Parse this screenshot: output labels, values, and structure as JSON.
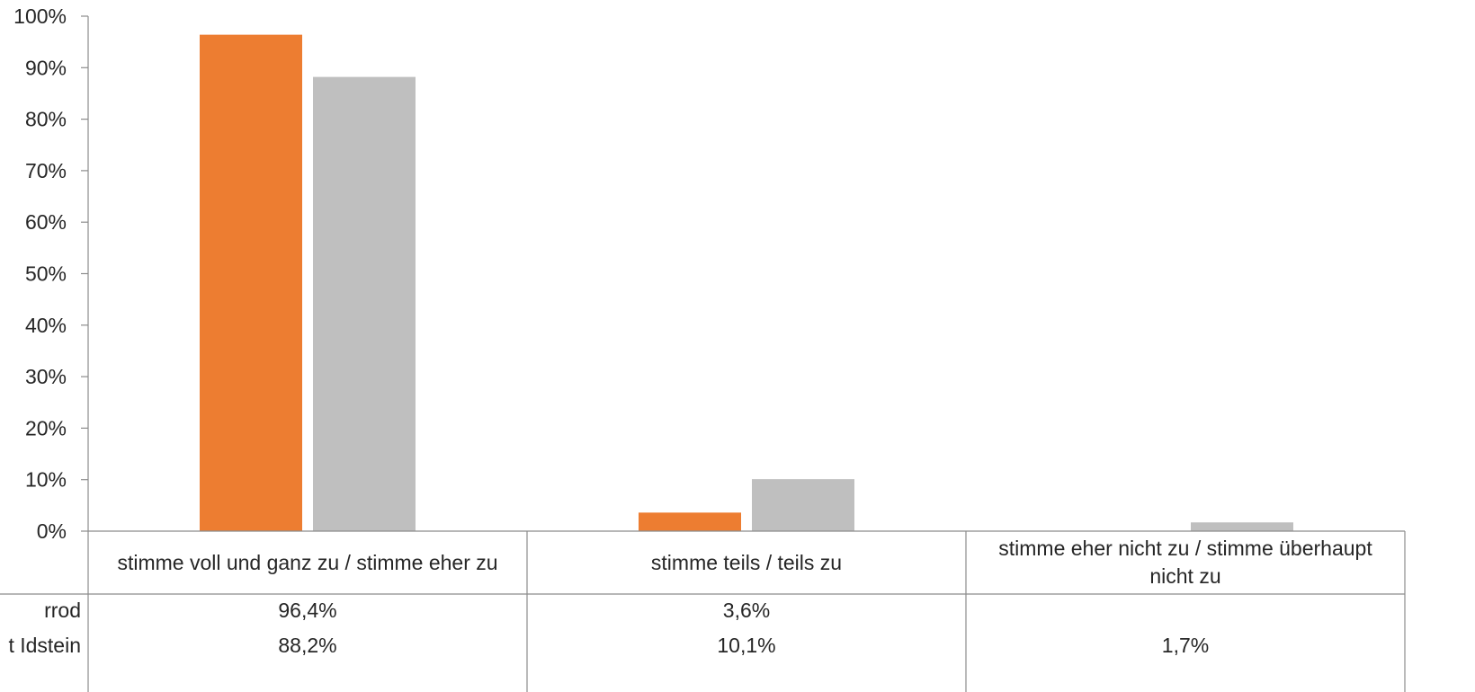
{
  "chart_data": {
    "type": "bar",
    "title": "",
    "xlabel": "",
    "ylabel": "",
    "ylim": [
      0,
      100
    ],
    "y_ticks": [
      "0%",
      "10%",
      "20%",
      "30%",
      "40%",
      "50%",
      "60%",
      "70%",
      "80%",
      "90%",
      "100%"
    ],
    "categories": [
      "stimme voll und ganz zu / stimme eher zu",
      "stimme teils / teils zu",
      "stimme eher nicht zu / stimme überhaupt nicht zu"
    ],
    "series": [
      {
        "name": "rrod",
        "color": "#ED7D31",
        "values": [
          96.4,
          3.6,
          null
        ],
        "labels": [
          "96,4%",
          "3,6%",
          ""
        ]
      },
      {
        "name": "t Idstein",
        "color": "#BFBFBF",
        "values": [
          88.2,
          10.1,
          1.7
        ],
        "labels": [
          "88,2%",
          "10,1%",
          "1,7%"
        ]
      }
    ],
    "grid": false,
    "legend": "data-table"
  }
}
